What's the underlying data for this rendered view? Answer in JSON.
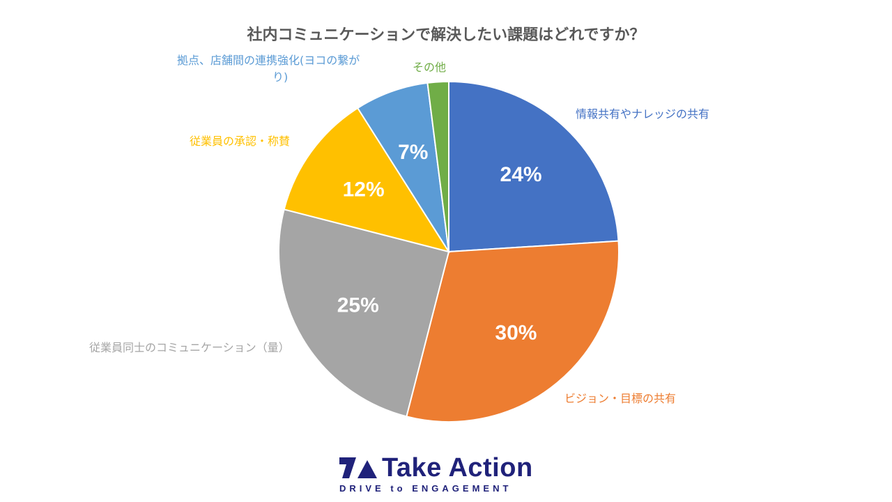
{
  "chart_data": {
    "type": "pie",
    "title": "社内コミュニケーションで解決したい課題はどれですか？",
    "start_angle_deg": 0,
    "direction": "clockwise",
    "slices": [
      {
        "category": "情報共有やナレッジの共有",
        "value": 24,
        "display": "24%",
        "color": "#4472c4"
      },
      {
        "category": "ビジョン・目標の共有",
        "value": 30,
        "display": "30%",
        "color": "#ed7d31"
      },
      {
        "category": "従業員同士のコミュニケーション（量）",
        "value": 25,
        "display": "25%",
        "color": "#a5a5a5"
      },
      {
        "category": "従業員の承認・称賛",
        "value": 12,
        "display": "12%",
        "color": "#ffc000"
      },
      {
        "category": "拠点、店舗間の連携強化(ヨコの繋がり)",
        "value": 7,
        "display": "7%",
        "color": "#5b9bd5"
      },
      {
        "category": "その他",
        "value": 2,
        "display": "",
        "color": "#70ad47"
      }
    ]
  },
  "category_labels": {
    "info": {
      "text": "情報共有やナレッジの共有",
      "color": "#4472c4"
    },
    "vision": {
      "text": "ビジョン・目標の共有",
      "color": "#ed7d31"
    },
    "employee": {
      "text": "従業員同士のコミュニケーション（量）",
      "color": "#a5a5a5"
    },
    "praise": {
      "text": "従業員の承認・称賛",
      "color": "#ffc000"
    },
    "branch_line1": {
      "text": "拠点、店舗間の連携強化(ヨコの繋が",
      "color": "#5b9bd5"
    },
    "branch_line2": {
      "text": "り)",
      "color": "#5b9bd5"
    },
    "other": {
      "text": "その他",
      "color": "#70ad47"
    }
  },
  "logo": {
    "name": "Take Action",
    "tagline": "DRIVE to ENGAGEMENT",
    "color": "#20227a"
  }
}
